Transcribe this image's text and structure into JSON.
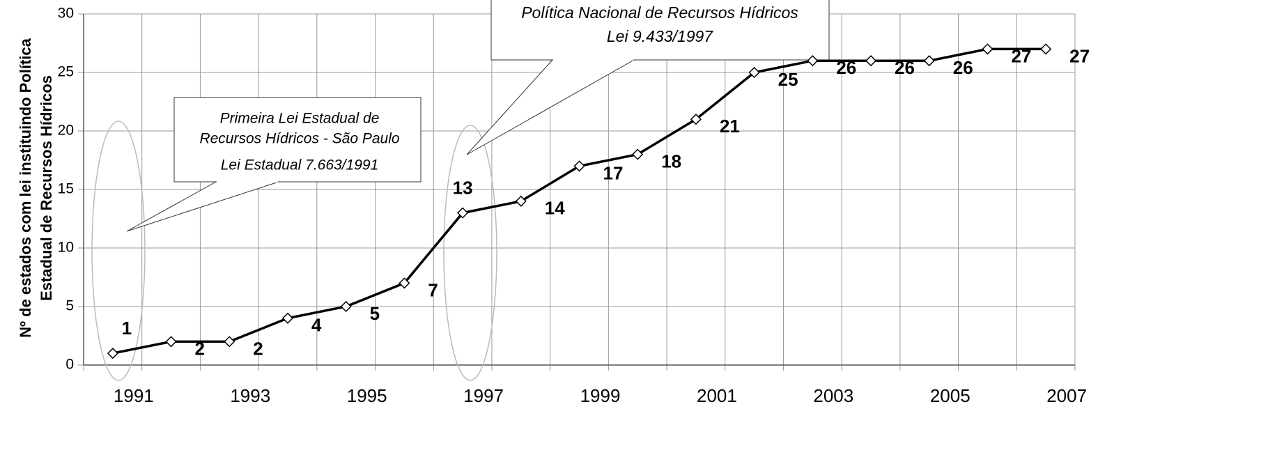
{
  "chart_data": {
    "type": "line",
    "ylabel": [
      "Nº de estados com lei instituindo Política",
      "Estadual de Recursos Hídricos"
    ],
    "categories": [
      1991,
      null,
      1993,
      null,
      1995,
      null,
      1997,
      null,
      1999,
      null,
      2001,
      null,
      2003,
      null,
      2005,
      null,
      2007
    ],
    "series": [
      {
        "color": "#000000",
        "values": [
          1,
          2,
          2,
          4,
          5,
          7,
          13,
          14,
          17,
          18,
          21,
          25,
          26,
          26,
          26,
          27,
          27
        ]
      }
    ],
    "ylim": [
      0,
      30
    ],
    "yticks": [
      0,
      5,
      10,
      15,
      20,
      25,
      30
    ],
    "grid": true,
    "annotations": [
      {
        "lines": [
          "Primeira Lei Estadual de",
          "Recursos Hídricos - São Paulo",
          "Lei Estadual 7.663/1991"
        ]
      },
      {
        "lines": [
          "Política Nacional de Recursos Hídricos",
          "Lei 9.433/1997"
        ]
      }
    ]
  }
}
